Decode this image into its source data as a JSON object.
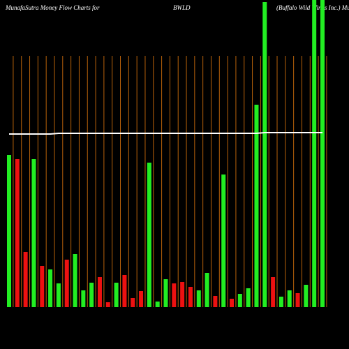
{
  "chart_data": {
    "type": "bar",
    "title": "MunafaSutra  Money Flow  Charts for",
    "symbol": "BWLD",
    "company": "(Buffalo  Wild Wings  Inc.) Mu",
    "categories": [
      null,
      null,
      null,
      null,
      null,
      null,
      null,
      null,
      null,
      null,
      null,
      null,
      null,
      null,
      null,
      null,
      null,
      null,
      null,
      null,
      null,
      null,
      null,
      null,
      null,
      null,
      null,
      null,
      null,
      null,
      null,
      null,
      null,
      null,
      null,
      null,
      null,
      null,
      null
    ],
    "series": [
      {
        "values": [
          218,
          212,
          79,
          212,
          59,
          54,
          34,
          68,
          76,
          24,
          35,
          43,
          7,
          35,
          46,
          13,
          23,
          207,
          8,
          40,
          34,
          36,
          29,
          24,
          49,
          16,
          190,
          12,
          19,
          27,
          290,
          437,
          43,
          15,
          24,
          20,
          32,
          440,
          440
        ],
        "colors": [
          "#22ee22",
          "#ee1111",
          "#ee1111",
          "#22ee22",
          "#ee1111",
          "#22ee22",
          "#22ee22",
          "#ee1111",
          "#22ee22",
          "#22ee22",
          "#22ee22",
          "#ee1111",
          "#ee1111",
          "#22ee22",
          "#ee1111",
          "#ee1111",
          "#ee1111",
          "#22ee22",
          "#22ee22",
          "#22ee22",
          "#ee1111",
          "#ee1111",
          "#ee1111",
          "#22ee22",
          "#22ee22",
          "#ee1111",
          "#22ee22",
          "#ee1111",
          "#22ee22",
          "#22ee22",
          "#22ee22",
          "#22ee22",
          "#ee1111",
          "#22ee22",
          "#22ee22",
          "#ee1111",
          "#22ee22",
          "#22ee22",
          "#22ee22"
        ]
      },
      {
        "type": "line",
        "color": "#ffffff",
        "values": [
          248,
          248,
          248,
          248,
          248,
          248,
          249,
          249,
          249,
          249,
          249,
          249,
          249,
          249,
          249,
          249,
          249,
          249,
          249,
          249,
          249,
          249,
          249,
          249,
          249,
          249,
          249,
          249,
          249,
          249,
          249,
          250,
          250,
          250,
          250,
          250,
          250,
          250,
          250
        ]
      }
    ],
    "grid_color": "#b8620a",
    "ylim": [
      0,
      440
    ]
  }
}
